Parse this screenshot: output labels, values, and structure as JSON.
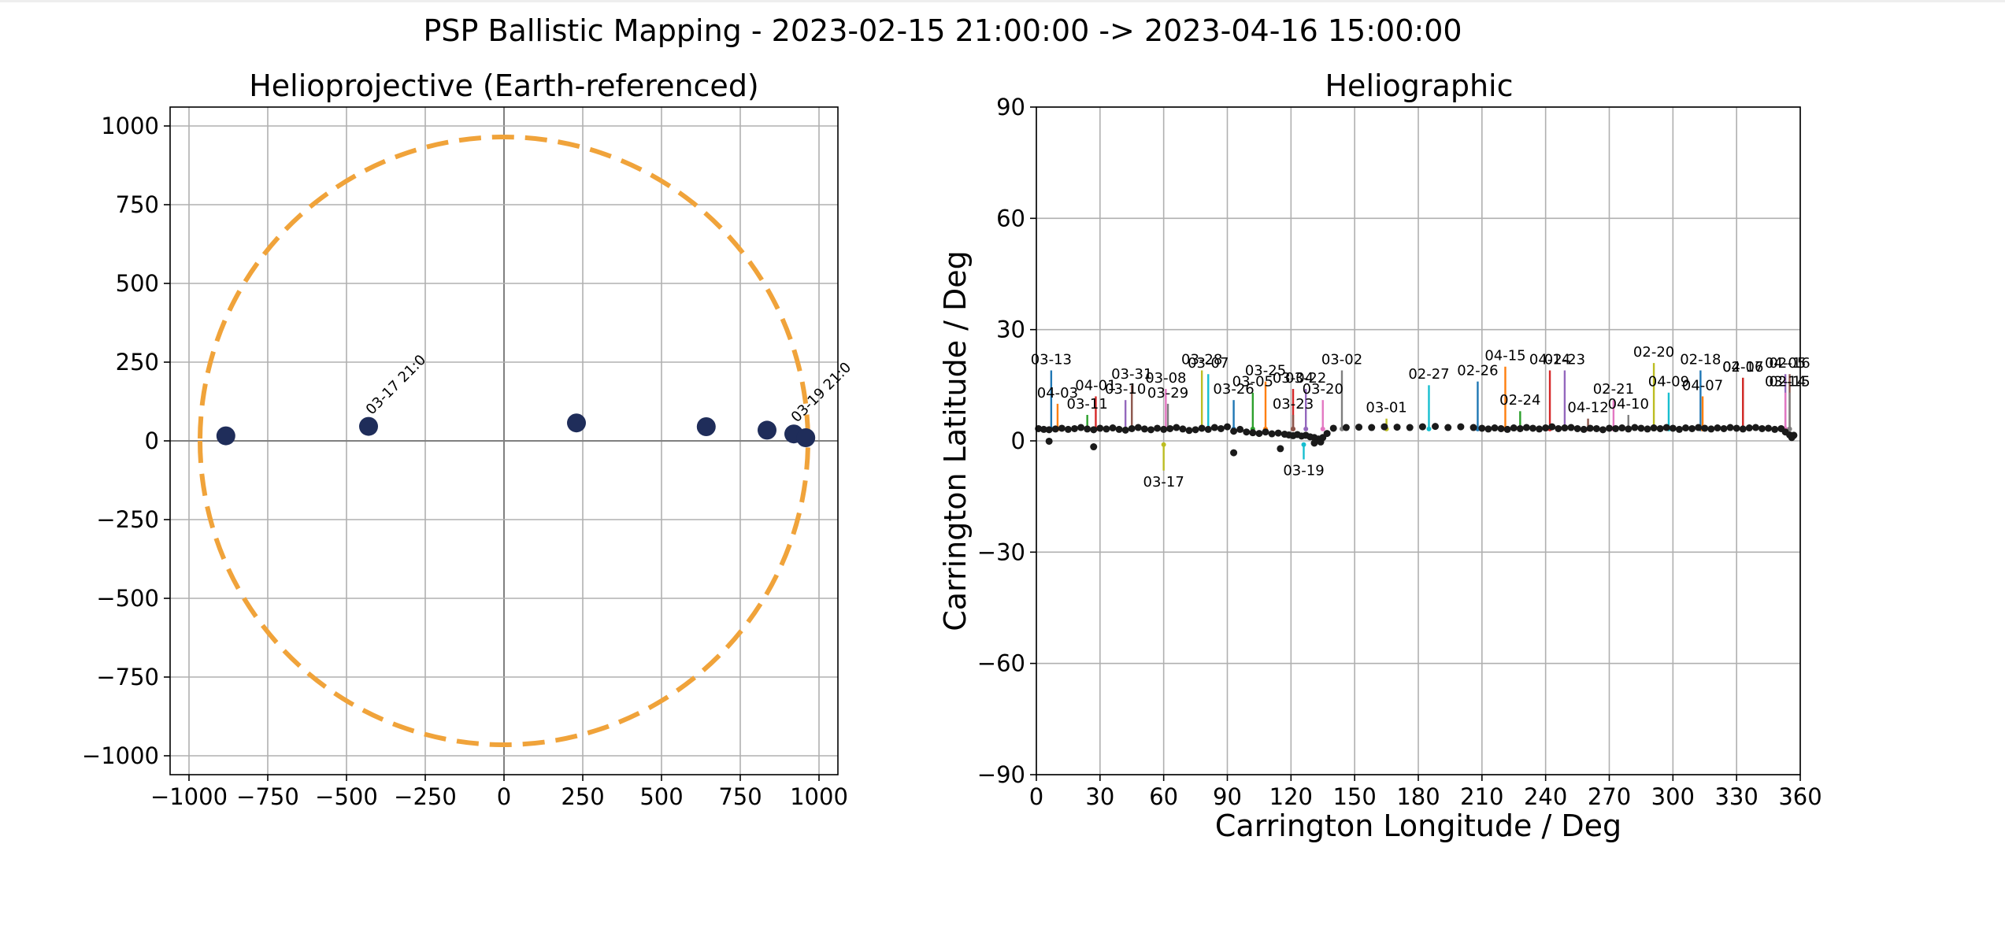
{
  "suptitle": "PSP Ballistic Mapping - 2023-02-15 21:00:00 -> 2023-04-16 15:00:00",
  "colors": {
    "limb": "#f0a33a",
    "marker": "#1f2d5a",
    "grid": "#b0b0b0",
    "palette": [
      "#1f77b4",
      "#ff7f0e",
      "#2ca02c",
      "#d62728",
      "#9467bd",
      "#8c564b",
      "#e377c2",
      "#7f7f7f",
      "#bcbd22",
      "#17becf"
    ]
  },
  "chart_data": [
    {
      "type": "scatter",
      "title": "Helioprojective (Earth-referenced)",
      "xlabel": "",
      "ylabel": "",
      "xlim": [
        -1060,
        1060
      ],
      "ylim": [
        -1060,
        1060
      ],
      "xticks": [
        -1000,
        -750,
        -500,
        -250,
        0,
        250,
        500,
        750,
        1000
      ],
      "yticks": [
        -1000,
        -750,
        -500,
        -250,
        0,
        250,
        500,
        750,
        1000
      ],
      "tick_labels_x": [
        "−1000",
        "−750",
        "−500",
        "−250",
        "0",
        "250",
        "500",
        "750",
        "1000"
      ],
      "tick_labels_y": [
        "−1000",
        "−750",
        "−500",
        "−250",
        "0",
        "250",
        "500",
        "750",
        "1000"
      ],
      "grid": true,
      "limb_radius": 965,
      "points": [
        {
          "x": -883,
          "y": 16
        },
        {
          "x": -430,
          "y": 46
        },
        {
          "x": 230,
          "y": 57
        },
        {
          "x": 642,
          "y": 45
        },
        {
          "x": 835,
          "y": 34
        },
        {
          "x": 920,
          "y": 22
        },
        {
          "x": 958,
          "y": 10
        }
      ],
      "annotations": [
        {
          "text": "03-17 21:0",
          "x": -430,
          "y": 46
        },
        {
          "text": "03-19 21:0",
          "x": 920,
          "y": 22
        }
      ]
    },
    {
      "type": "scatter",
      "title": "Heliographic",
      "xlabel": "Carrington Longitude / Deg",
      "ylabel": "Carrington Latitude / Deg",
      "xlim": [
        0,
        360
      ],
      "ylim": [
        -90,
        90
      ],
      "xticks": [
        0,
        30,
        60,
        90,
        120,
        150,
        180,
        210,
        240,
        270,
        300,
        330,
        360
      ],
      "yticks": [
        -90,
        -60,
        -30,
        0,
        30,
        60,
        90
      ],
      "tick_labels_x": [
        "0",
        "30",
        "60",
        "90",
        "120",
        "150",
        "180",
        "210",
        "240",
        "270",
        "300",
        "330",
        "360"
      ],
      "tick_labels_y": [
        "−90",
        "−60",
        "−30",
        "0",
        "30",
        "60",
        "90"
      ],
      "grid": true,
      "footpoints": [
        [
          1,
          3.3
        ],
        [
          3.5,
          3.1
        ],
        [
          6,
          3.0
        ],
        [
          9,
          3.2
        ],
        [
          12,
          3.4
        ],
        [
          15,
          3.1
        ],
        [
          18,
          3.3
        ],
        [
          21,
          3.6
        ],
        [
          24,
          3.2
        ],
        [
          27,
          3.0
        ],
        [
          30,
          3.4
        ],
        [
          33,
          3.2
        ],
        [
          36,
          3.5
        ],
        [
          39,
          3.1
        ],
        [
          42,
          2.9
        ],
        [
          45,
          3.3
        ],
        [
          48,
          3.6
        ],
        [
          51,
          3.2
        ],
        [
          54,
          3.0
        ],
        [
          57,
          3.4
        ],
        [
          60,
          3.1
        ],
        [
          63,
          3.3
        ],
        [
          66,
          3.6
        ],
        [
          69,
          3.2
        ],
        [
          72,
          2.8
        ],
        [
          75,
          3.0
        ],
        [
          78,
          3.4
        ],
        [
          81,
          3.1
        ],
        [
          84,
          3.6
        ],
        [
          87,
          3.3
        ],
        [
          90,
          3.8
        ],
        [
          93,
          2.6
        ],
        [
          96,
          3.1
        ],
        [
          99,
          2.4
        ],
        [
          102,
          2.2
        ],
        [
          105,
          2.0
        ],
        [
          108,
          2.4
        ],
        [
          111,
          1.9
        ],
        [
          114,
          2.1
        ],
        [
          117,
          1.8
        ],
        [
          119,
          1.6
        ],
        [
          121,
          1.4
        ],
        [
          123,
          1.7
        ],
        [
          125,
          1.3
        ],
        [
          127,
          1.5
        ],
        [
          129,
          1.1
        ],
        [
          131,
          0.9
        ],
        [
          133,
          0.5
        ],
        [
          135,
          0.9
        ],
        [
          137,
          2.0
        ],
        [
          140,
          3.4
        ],
        [
          146,
          3.6
        ],
        [
          152,
          3.7
        ],
        [
          158,
          3.6
        ],
        [
          164,
          3.8
        ],
        [
          170,
          3.7
        ],
        [
          176,
          3.6
        ],
        [
          182,
          3.8
        ],
        [
          188,
          3.9
        ],
        [
          194,
          3.6
        ],
        [
          200,
          3.8
        ],
        [
          206,
          3.6
        ],
        [
          210,
          3.4
        ],
        [
          213,
          3.2
        ],
        [
          216,
          3.5
        ],
        [
          219,
          3.3
        ],
        [
          222,
          3.1
        ],
        [
          225,
          3.5
        ],
        [
          228,
          3.3
        ],
        [
          231,
          3.6
        ],
        [
          234,
          3.4
        ],
        [
          237,
          3.2
        ],
        [
          240,
          3.5
        ],
        [
          243,
          3.8
        ],
        [
          246,
          3.3
        ],
        [
          249,
          3.5
        ],
        [
          252,
          3.6
        ],
        [
          255,
          3.3
        ],
        [
          258,
          3.1
        ],
        [
          261,
          3.4
        ],
        [
          264,
          3.3
        ],
        [
          267,
          3.0
        ],
        [
          270,
          3.4
        ],
        [
          273,
          3.3
        ],
        [
          276,
          3.5
        ],
        [
          279,
          3.2
        ],
        [
          282,
          3.6
        ],
        [
          285,
          3.4
        ],
        [
          288,
          3.2
        ],
        [
          291,
          3.5
        ],
        [
          294,
          3.3
        ],
        [
          297,
          3.6
        ],
        [
          300,
          3.4
        ],
        [
          303,
          3.1
        ],
        [
          306,
          3.5
        ],
        [
          309,
          3.3
        ],
        [
          312,
          3.6
        ],
        [
          315,
          3.4
        ],
        [
          318,
          3.2
        ],
        [
          321,
          3.5
        ],
        [
          324,
          3.3
        ],
        [
          327,
          3.6
        ],
        [
          330,
          3.4
        ],
        [
          333,
          3.2
        ],
        [
          336,
          3.5
        ],
        [
          339,
          3.6
        ],
        [
          342,
          3.3
        ],
        [
          345,
          3.4
        ],
        [
          348,
          3.1
        ],
        [
          351,
          3.3
        ],
        [
          353,
          2.4
        ],
        [
          355,
          1.6
        ],
        [
          356,
          0.9
        ],
        [
          357,
          1.5
        ],
        [
          6,
          -0.1
        ],
        [
          27,
          -1.6
        ],
        [
          93,
          -3.2
        ],
        [
          115,
          -2.1
        ],
        [
          131,
          -0.6
        ],
        [
          134,
          -0.3
        ]
      ],
      "labels": [
        {
          "text": "03-13",
          "x": 7,
          "y": 22
        },
        {
          "text": "04-03",
          "x": 10,
          "y": 13
        },
        {
          "text": "03-11",
          "x": 24,
          "y": 10
        },
        {
          "text": "04-01",
          "x": 28,
          "y": 15
        },
        {
          "text": "03-10",
          "x": 42,
          "y": 14
        },
        {
          "text": "03-31",
          "x": 45,
          "y": 18
        },
        {
          "text": "03-08",
          "x": 61,
          "y": 17
        },
        {
          "text": "03-29",
          "x": 62,
          "y": 13
        },
        {
          "text": "03-28",
          "x": 78,
          "y": 22
        },
        {
          "text": "03-07",
          "x": 81,
          "y": 21
        },
        {
          "text": "03-26",
          "x": 93,
          "y": 14
        },
        {
          "text": "03-25",
          "x": 108,
          "y": 19
        },
        {
          "text": "03-05",
          "x": 102,
          "y": 16
        },
        {
          "text": "03-04",
          "x": 121,
          "y": 17
        },
        {
          "text": "03-22",
          "x": 127,
          "y": 17
        },
        {
          "text": "03-23",
          "x": 121,
          "y": 10
        },
        {
          "text": "03-20",
          "x": 135,
          "y": 14
        },
        {
          "text": "03-02",
          "x": 144,
          "y": 22
        },
        {
          "text": "03-01",
          "x": 165,
          "y": 9
        },
        {
          "text": "02-27",
          "x": 185,
          "y": 18
        },
        {
          "text": "02-26",
          "x": 208,
          "y": 19
        },
        {
          "text": "04-15",
          "x": 221,
          "y": 23
        },
        {
          "text": "02-24",
          "x": 228,
          "y": 11
        },
        {
          "text": "04-14",
          "x": 242,
          "y": 22
        },
        {
          "text": "02-23",
          "x": 249,
          "y": 22
        },
        {
          "text": "04-12",
          "x": 260,
          "y": 9
        },
        {
          "text": "02-21",
          "x": 272,
          "y": 14
        },
        {
          "text": "04-10",
          "x": 279,
          "y": 10
        },
        {
          "text": "02-20",
          "x": 291,
          "y": 24
        },
        {
          "text": "04-09",
          "x": 298,
          "y": 16
        },
        {
          "text": "02-18",
          "x": 313,
          "y": 22
        },
        {
          "text": "04-07",
          "x": 314,
          "y": 15
        },
        {
          "text": "04-06",
          "x": 333,
          "y": 20
        },
        {
          "text": "02-17",
          "x": 333,
          "y": 20
        },
        {
          "text": "04-05",
          "x": 353,
          "y": 21
        },
        {
          "text": "02-16",
          "x": 355,
          "y": 21
        },
        {
          "text": "03-14",
          "x": 353,
          "y": 16
        },
        {
          "text": "02-15",
          "x": 355,
          "y": 16
        },
        {
          "text": "03-17",
          "x": 60,
          "y": -11
        },
        {
          "text": "03-19",
          "x": 126,
          "y": -8
        }
      ]
    }
  ]
}
